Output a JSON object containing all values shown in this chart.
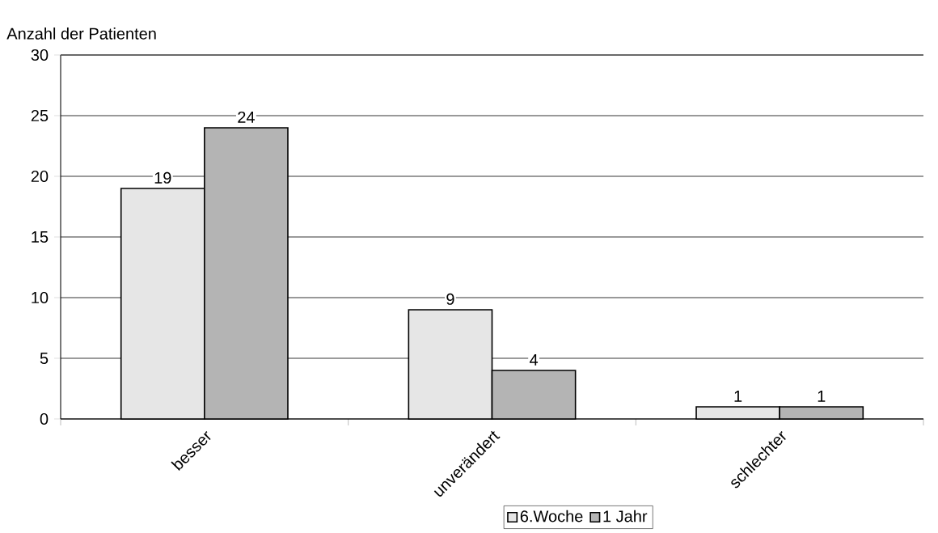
{
  "chart_data": {
    "type": "bar",
    "ylabel": "Anzahl der Patienten",
    "categories": [
      "besser",
      "unverändert",
      "schlechter"
    ],
    "series": [
      {
        "name": "6.Woche",
        "color": "#e6e6e6",
        "values": [
          19,
          9,
          1
        ]
      },
      {
        "name": "1 Jahr",
        "color": "#b4b4b4",
        "values": [
          24,
          4,
          1
        ]
      }
    ],
    "ylim": [
      0,
      30
    ],
    "yticks": [
      0,
      5,
      10,
      15,
      20,
      25,
      30
    ],
    "grid": "y",
    "legend": "bottom",
    "data_labels": true
  }
}
